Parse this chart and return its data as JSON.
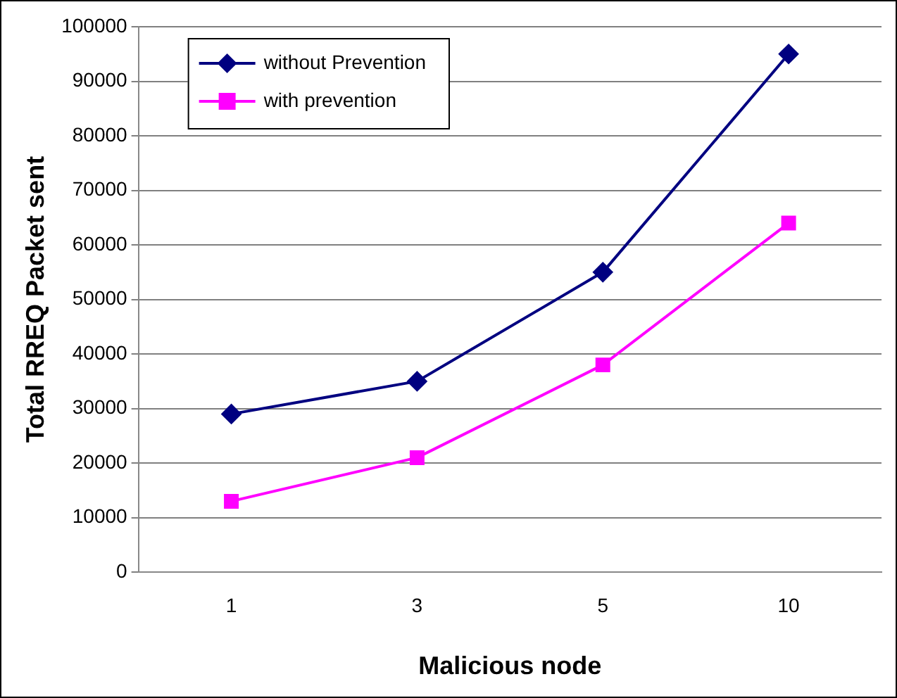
{
  "chart_data": {
    "type": "line",
    "xlabel": "Malicious node",
    "ylabel": "Total RREQ Packet sent",
    "categories": [
      "1",
      "3",
      "5",
      "10"
    ],
    "series": [
      {
        "name": "without Prevention",
        "color": "#000080",
        "marker": "diamond",
        "values": [
          29000,
          35000,
          55000,
          95000
        ]
      },
      {
        "name": "with prevention",
        "color": "#ff00ff",
        "marker": "square",
        "values": [
          13000,
          21000,
          38000,
          64000
        ]
      }
    ],
    "ylim": [
      0,
      100000
    ],
    "yticks": [
      0,
      10000,
      20000,
      30000,
      40000,
      50000,
      60000,
      70000,
      80000,
      90000,
      100000
    ],
    "grid": "y",
    "legend": "top left",
    "line_style": "solid"
  }
}
